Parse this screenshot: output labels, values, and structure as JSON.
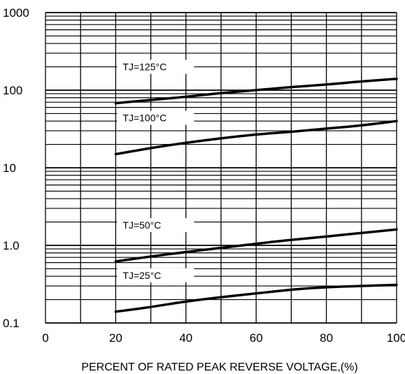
{
  "chart_data": {
    "type": "line",
    "title": "",
    "xlabel": "PERCENT OF RATED PEAK REVERSE VOLTAGE,(%)",
    "ylabel": "",
    "xlim": [
      0,
      100
    ],
    "ylim": [
      0.1,
      1000
    ],
    "yscale": "log",
    "grid": true,
    "x_ticks": [
      0,
      20,
      40,
      60,
      80,
      100
    ],
    "x_tick_labels": [
      "0",
      "20",
      "40",
      "60",
      "80",
      "100"
    ],
    "y_ticks": [
      0.1,
      1,
      10,
      100,
      1000
    ],
    "y_tick_labels": [
      "0.1",
      "1.0",
      "10",
      "100",
      "1000"
    ],
    "series": [
      {
        "name": "TJ=125°C",
        "x": [
          20,
          30,
          40,
          50,
          60,
          70,
          80,
          90,
          100
        ],
        "y": [
          68,
          75,
          82,
          92,
          100,
          110,
          118,
          130,
          140
        ]
      },
      {
        "name": "TJ=100°C",
        "x": [
          20,
          30,
          40,
          50,
          60,
          70,
          80,
          90,
          100
        ],
        "y": [
          15,
          18,
          21,
          24,
          27,
          29,
          32,
          35,
          40
        ]
      },
      {
        "name": "TJ=50°C",
        "x": [
          20,
          30,
          40,
          50,
          60,
          70,
          80,
          90,
          100
        ],
        "y": [
          0.62,
          0.72,
          0.82,
          0.93,
          1.05,
          1.18,
          1.3,
          1.45,
          1.6
        ]
      },
      {
        "name": "TJ=25°C",
        "x": [
          20,
          30,
          40,
          50,
          60,
          70,
          80,
          90,
          100
        ],
        "y": [
          0.14,
          0.16,
          0.19,
          0.215,
          0.24,
          0.27,
          0.29,
          0.3,
          0.31
        ]
      }
    ]
  }
}
